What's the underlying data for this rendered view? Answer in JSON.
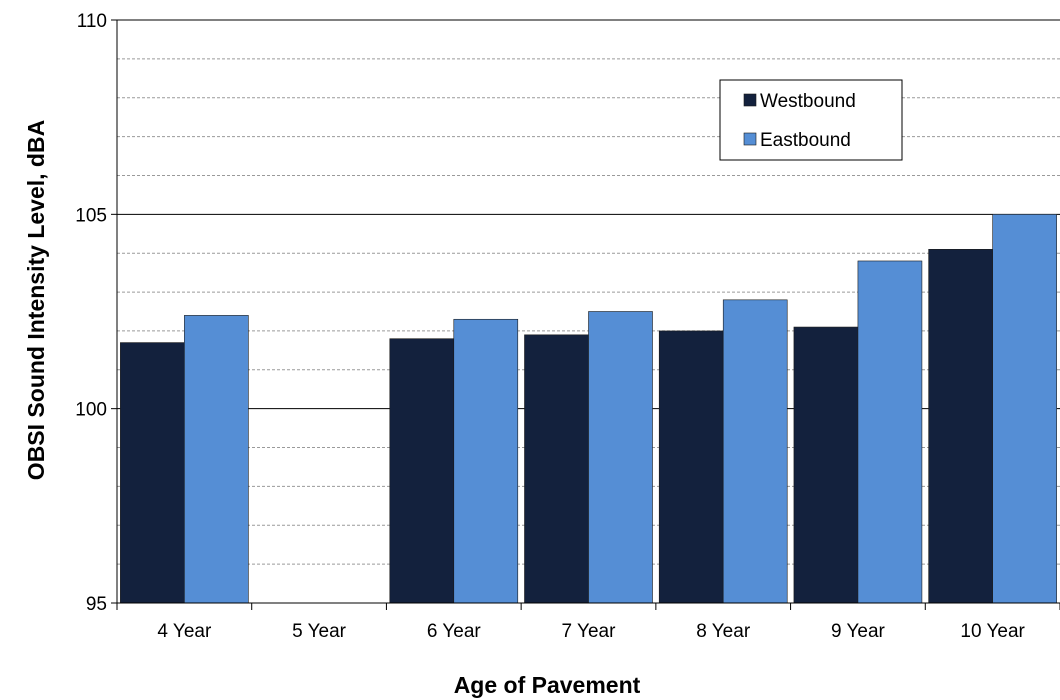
{
  "chart_data": {
    "type": "bar",
    "title": "",
    "xlabel": "Age of Pavement",
    "ylabel": "OBSI Sound Intensity Level, dBA",
    "categories": [
      "4 Year",
      "5 Year",
      "6 Year",
      "7 Year",
      "8 Year",
      "9 Year",
      "10 Year"
    ],
    "series": [
      {
        "name": "Westbound",
        "color": "#13213d",
        "values": [
          101.7,
          null,
          101.8,
          101.9,
          102.0,
          102.1,
          104.1
        ]
      },
      {
        "name": "Eastbound",
        "color": "#558ed5",
        "values": [
          102.4,
          null,
          102.3,
          102.5,
          102.8,
          103.8,
          105.0
        ]
      }
    ],
    "ylim": [
      95,
      110
    ],
    "yticks": [
      95,
      100,
      105,
      110
    ],
    "grid": {
      "major": true,
      "minor": true,
      "minor_step": 1
    },
    "legend_position": "top-right"
  }
}
